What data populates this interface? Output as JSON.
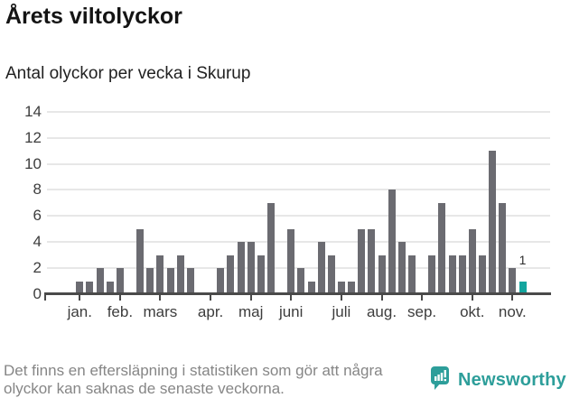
{
  "title": "Årets viltolyckor",
  "subtitle": "Antal olyckor per vecka i Skurup",
  "footnote": {
    "line1": "Det finns en eftersläpning i statistiken som gör att några",
    "line2": "olyckor kan saknas de senaste veckorna."
  },
  "logo": {
    "text": "Newsworthy",
    "color": "#2d9e9a"
  },
  "chart_data": {
    "type": "bar",
    "title": "Årets viltolyckor",
    "subtitle": "Antal olyckor per vecka i Skurup",
    "ylabel": "Antal olyckor per vecka",
    "xlabel": "",
    "ylim": [
      0,
      14
    ],
    "yticks": [
      0,
      2,
      4,
      6,
      8,
      10,
      12,
      14
    ],
    "grid": "horizontal",
    "values": [
      1,
      1,
      2,
      1,
      2,
      0,
      5,
      2,
      3,
      2,
      3,
      2,
      0,
      0,
      2,
      3,
      4,
      4,
      3,
      7,
      0,
      5,
      2,
      1,
      4,
      3,
      1,
      1,
      5,
      5,
      3,
      8,
      4,
      3,
      0,
      3,
      7,
      3,
      3,
      5,
      3,
      11,
      7,
      2,
      1
    ],
    "month_ticks": [
      {
        "label": "jan.",
        "index": 0
      },
      {
        "label": "feb.",
        "index": 4
      },
      {
        "label": "mars",
        "index": 8
      },
      {
        "label": "apr.",
        "index": 13
      },
      {
        "label": "maj",
        "index": 17
      },
      {
        "label": "juni",
        "index": 21
      },
      {
        "label": "juli",
        "index": 26
      },
      {
        "label": "aug.",
        "index": 30
      },
      {
        "label": "sep.",
        "index": 34
      },
      {
        "label": "okt.",
        "index": 39
      },
      {
        "label": "nov.",
        "index": 43
      }
    ],
    "highlight_last_bar": true,
    "last_bar_value_label": "1",
    "colors": {
      "bar": "#6b6b71",
      "highlight": "#13a59e",
      "grid": "#e7e7e7",
      "axis": "#4a4a4a",
      "axis_text": "#3d3d3d"
    }
  }
}
